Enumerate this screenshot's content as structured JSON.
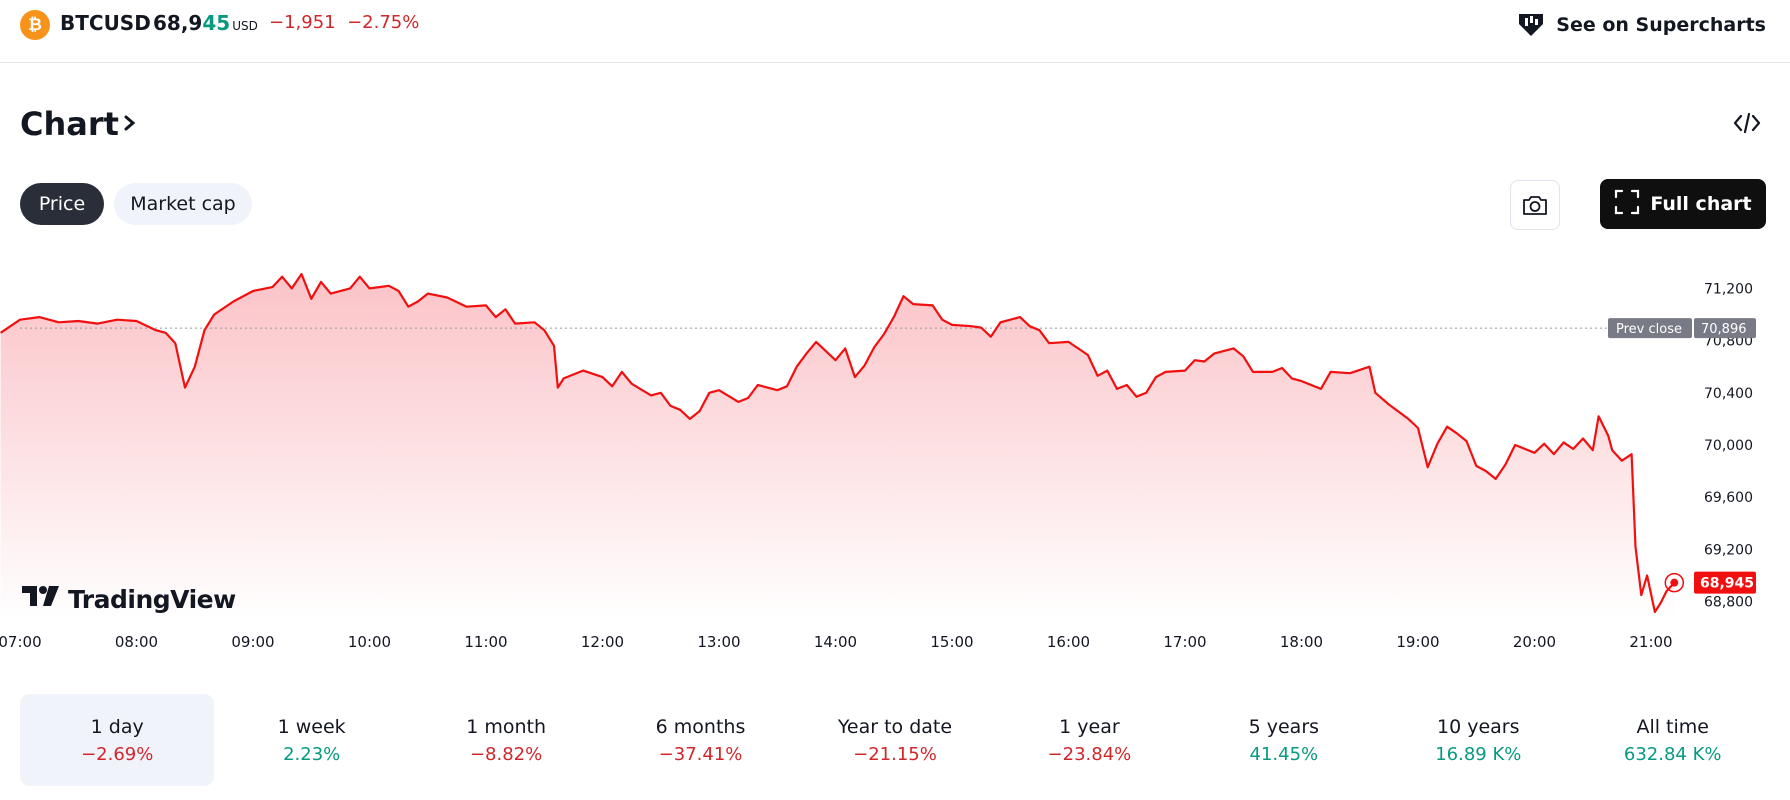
{
  "header": {
    "logo_glyph": "₿",
    "symbol": "BTCUSD",
    "price_main": "68,9",
    "price_tail": "45",
    "currency": "USD",
    "change_abs": "−1,951",
    "change_pct": "−2.75%",
    "supercharts_label": "See on Supercharts"
  },
  "section_title": "Chart",
  "tabs": [
    {
      "label": "Price",
      "selected": true
    },
    {
      "label": "Market cap",
      "selected": false
    }
  ],
  "full_chart_label": "Full chart",
  "icons": {
    "btc": "bitcoin-icon",
    "supercharts": "supercharts-icon",
    "embed": "embed-code-icon",
    "camera": "camera-icon",
    "fullscreen": "fullscreen-icon",
    "tradingview": "tradingview-logo"
  },
  "colors": {
    "line": "#f20f0f",
    "negative": "#d1262a",
    "positive": "#089981",
    "prev_close_badge": "#787b86"
  },
  "brand": "TradingView",
  "chart_data": {
    "type": "area",
    "y_ticks": [
      68800,
      69200,
      69600,
      70000,
      70400,
      70800,
      71200
    ],
    "ylim": [
      68700,
      71400
    ],
    "x_ticks": [
      "07:00",
      "08:00",
      "09:00",
      "10:00",
      "11:00",
      "12:00",
      "13:00",
      "14:00",
      "15:00",
      "16:00",
      "17:00",
      "18:00",
      "19:00",
      "20:00",
      "21:00"
    ],
    "prev_close": {
      "label": "Prev close",
      "value": 70896,
      "display": "70,896"
    },
    "last_price": {
      "value": 68945,
      "display": "68,945"
    },
    "series": [
      {
        "time": "06:50",
        "value": 70860
      },
      {
        "time": "07:00",
        "value": 70960
      },
      {
        "time": "07:10",
        "value": 70980
      },
      {
        "time": "07:20",
        "value": 70940
      },
      {
        "time": "07:30",
        "value": 70950
      },
      {
        "time": "07:40",
        "value": 70930
      },
      {
        "time": "07:50",
        "value": 70960
      },
      {
        "time": "08:00",
        "value": 70950
      },
      {
        "time": "08:10",
        "value": 70880
      },
      {
        "time": "08:15",
        "value": 70860
      },
      {
        "time": "08:20",
        "value": 70780
      },
      {
        "time": "08:25",
        "value": 70440
      },
      {
        "time": "08:30",
        "value": 70600
      },
      {
        "time": "08:35",
        "value": 70880
      },
      {
        "time": "08:40",
        "value": 71000
      },
      {
        "time": "08:50",
        "value": 71100
      },
      {
        "time": "09:00",
        "value": 71180
      },
      {
        "time": "09:10",
        "value": 71210
      },
      {
        "time": "09:15",
        "value": 71290
      },
      {
        "time": "09:20",
        "value": 71200
      },
      {
        "time": "09:25",
        "value": 71310
      },
      {
        "time": "09:30",
        "value": 71120
      },
      {
        "time": "09:35",
        "value": 71250
      },
      {
        "time": "09:40",
        "value": 71160
      },
      {
        "time": "09:50",
        "value": 71200
      },
      {
        "time": "09:55",
        "value": 71290
      },
      {
        "time": "10:00",
        "value": 71200
      },
      {
        "time": "10:10",
        "value": 71220
      },
      {
        "time": "10:15",
        "value": 71180
      },
      {
        "time": "10:20",
        "value": 71060
      },
      {
        "time": "10:25",
        "value": 71100
      },
      {
        "time": "10:30",
        "value": 71160
      },
      {
        "time": "10:40",
        "value": 71130
      },
      {
        "time": "10:50",
        "value": 71060
      },
      {
        "time": "11:00",
        "value": 71070
      },
      {
        "time": "11:05",
        "value": 70980
      },
      {
        "time": "11:10",
        "value": 71040
      },
      {
        "time": "11:15",
        "value": 70930
      },
      {
        "time": "11:25",
        "value": 70940
      },
      {
        "time": "11:30",
        "value": 70880
      },
      {
        "time": "11:35",
        "value": 70760
      },
      {
        "time": "11:37",
        "value": 70440
      },
      {
        "time": "11:40",
        "value": 70510
      },
      {
        "time": "11:50",
        "value": 70570
      },
      {
        "time": "12:00",
        "value": 70520
      },
      {
        "time": "12:05",
        "value": 70450
      },
      {
        "time": "12:10",
        "value": 70560
      },
      {
        "time": "12:15",
        "value": 70470
      },
      {
        "time": "12:25",
        "value": 70380
      },
      {
        "time": "12:30",
        "value": 70400
      },
      {
        "time": "12:35",
        "value": 70300
      },
      {
        "time": "12:40",
        "value": 70270
      },
      {
        "time": "12:45",
        "value": 70200
      },
      {
        "time": "12:50",
        "value": 70260
      },
      {
        "time": "12:55",
        "value": 70400
      },
      {
        "time": "13:00",
        "value": 70420
      },
      {
        "time": "13:10",
        "value": 70330
      },
      {
        "time": "13:15",
        "value": 70360
      },
      {
        "time": "13:20",
        "value": 70460
      },
      {
        "time": "13:30",
        "value": 70420
      },
      {
        "time": "13:35",
        "value": 70450
      },
      {
        "time": "13:40",
        "value": 70600
      },
      {
        "time": "13:45",
        "value": 70700
      },
      {
        "time": "13:50",
        "value": 70790
      },
      {
        "time": "14:00",
        "value": 70650
      },
      {
        "time": "14:05",
        "value": 70740
      },
      {
        "time": "14:10",
        "value": 70520
      },
      {
        "time": "14:15",
        "value": 70610
      },
      {
        "time": "14:20",
        "value": 70750
      },
      {
        "time": "14:25",
        "value": 70850
      },
      {
        "time": "14:30",
        "value": 70980
      },
      {
        "time": "14:35",
        "value": 71140
      },
      {
        "time": "14:40",
        "value": 71080
      },
      {
        "time": "14:50",
        "value": 71070
      },
      {
        "time": "14:55",
        "value": 70960
      },
      {
        "time": "15:00",
        "value": 70920
      },
      {
        "time": "15:10",
        "value": 70910
      },
      {
        "time": "15:15",
        "value": 70900
      },
      {
        "time": "15:20",
        "value": 70830
      },
      {
        "time": "15:25",
        "value": 70940
      },
      {
        "time": "15:35",
        "value": 70980
      },
      {
        "time": "15:40",
        "value": 70910
      },
      {
        "time": "15:45",
        "value": 70880
      },
      {
        "time": "15:50",
        "value": 70780
      },
      {
        "time": "16:00",
        "value": 70790
      },
      {
        "time": "16:10",
        "value": 70690
      },
      {
        "time": "16:15",
        "value": 70530
      },
      {
        "time": "16:20",
        "value": 70570
      },
      {
        "time": "16:25",
        "value": 70430
      },
      {
        "time": "16:30",
        "value": 70460
      },
      {
        "time": "16:35",
        "value": 70370
      },
      {
        "time": "16:40",
        "value": 70400
      },
      {
        "time": "16:45",
        "value": 70520
      },
      {
        "time": "16:50",
        "value": 70560
      },
      {
        "time": "17:00",
        "value": 70570
      },
      {
        "time": "17:05",
        "value": 70650
      },
      {
        "time": "17:10",
        "value": 70640
      },
      {
        "time": "17:15",
        "value": 70700
      },
      {
        "time": "17:25",
        "value": 70740
      },
      {
        "time": "17:30",
        "value": 70680
      },
      {
        "time": "17:35",
        "value": 70560
      },
      {
        "time": "17:45",
        "value": 70560
      },
      {
        "time": "17:50",
        "value": 70590
      },
      {
        "time": "17:55",
        "value": 70510
      },
      {
        "time": "18:00",
        "value": 70490
      },
      {
        "time": "18:10",
        "value": 70430
      },
      {
        "time": "18:15",
        "value": 70560
      },
      {
        "time": "18:25",
        "value": 70550
      },
      {
        "time": "18:35",
        "value": 70600
      },
      {
        "time": "18:38",
        "value": 70400
      },
      {
        "time": "18:45",
        "value": 70310
      },
      {
        "time": "18:55",
        "value": 70200
      },
      {
        "time": "19:00",
        "value": 70130
      },
      {
        "time": "19:05",
        "value": 69830
      },
      {
        "time": "19:10",
        "value": 70010
      },
      {
        "time": "19:15",
        "value": 70140
      },
      {
        "time": "19:20",
        "value": 70090
      },
      {
        "time": "19:25",
        "value": 70030
      },
      {
        "time": "19:30",
        "value": 69840
      },
      {
        "time": "19:35",
        "value": 69800
      },
      {
        "time": "19:40",
        "value": 69740
      },
      {
        "time": "19:45",
        "value": 69850
      },
      {
        "time": "19:50",
        "value": 70000
      },
      {
        "time": "20:00",
        "value": 69940
      },
      {
        "time": "20:05",
        "value": 70010
      },
      {
        "time": "20:10",
        "value": 69930
      },
      {
        "time": "20:15",
        "value": 70020
      },
      {
        "time": "20:20",
        "value": 69970
      },
      {
        "time": "20:25",
        "value": 70050
      },
      {
        "time": "20:30",
        "value": 69960
      },
      {
        "time": "20:33",
        "value": 70220
      },
      {
        "time": "20:38",
        "value": 70070
      },
      {
        "time": "20:40",
        "value": 69960
      },
      {
        "time": "20:45",
        "value": 69880
      },
      {
        "time": "20:50",
        "value": 69930
      },
      {
        "time": "20:52",
        "value": 69220
      },
      {
        "time": "20:55",
        "value": 68850
      },
      {
        "time": "20:58",
        "value": 69000
      },
      {
        "time": "21:00",
        "value": 68860
      },
      {
        "time": "21:02",
        "value": 68720
      },
      {
        "time": "21:05",
        "value": 68790
      },
      {
        "time": "21:08",
        "value": 68880
      },
      {
        "time": "21:12",
        "value": 68945
      }
    ]
  },
  "periods": [
    {
      "label": "1 day",
      "value": "−2.69%",
      "trend": "neg",
      "selected": true
    },
    {
      "label": "1 week",
      "value": "2.23%",
      "trend": "pos",
      "selected": false
    },
    {
      "label": "1 month",
      "value": "−8.82%",
      "trend": "neg",
      "selected": false
    },
    {
      "label": "6 months",
      "value": "−37.41%",
      "trend": "neg",
      "selected": false
    },
    {
      "label": "Year to date",
      "value": "−21.15%",
      "trend": "neg",
      "selected": false
    },
    {
      "label": "1 year",
      "value": "−23.84%",
      "trend": "neg",
      "selected": false
    },
    {
      "label": "5 years",
      "value": "41.45%",
      "trend": "pos",
      "selected": false
    },
    {
      "label": "10 years",
      "value": "16.89 K%",
      "trend": "pos",
      "selected": false
    },
    {
      "label": "All time",
      "value": "632.84 K%",
      "trend": "pos",
      "selected": false
    }
  ]
}
